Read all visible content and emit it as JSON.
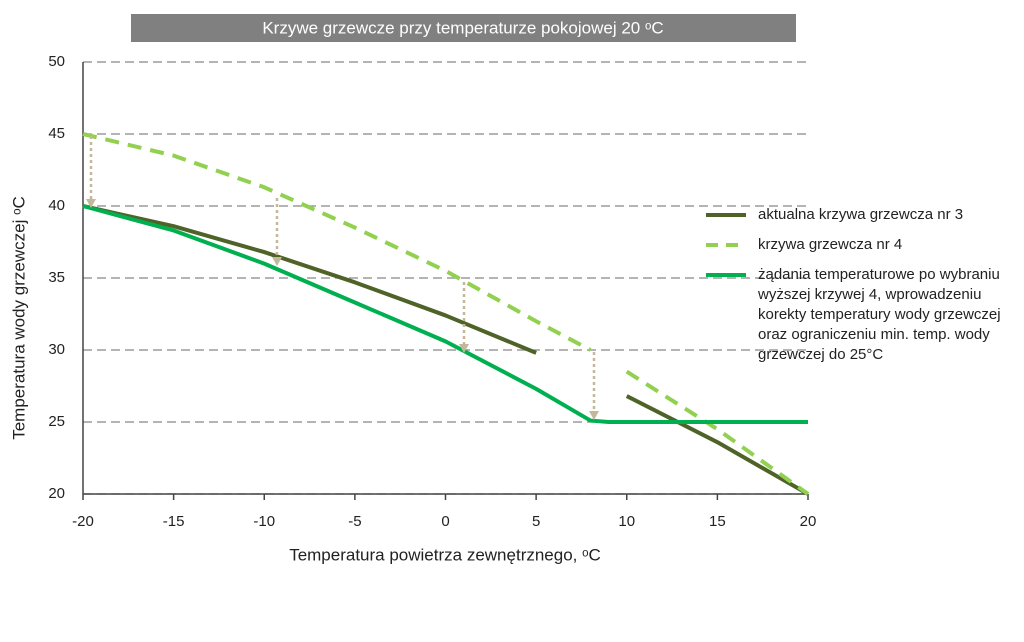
{
  "chart_data": {
    "type": "line",
    "title": "Krzywe grzewcze przy temperaturze pokojowej 20 ᵒC",
    "x_label": "Temperatura powietrza zewnętrznego, ᵒC",
    "y_label": "Temperatura wody grzewczej ᵒC",
    "x": [
      -20,
      -15,
      -10,
      -5,
      0,
      5,
      8,
      9,
      10,
      15,
      20
    ],
    "series": [
      {
        "name": "aktualna krzywa grzewcza nr 3",
        "color": "#4f6228",
        "dashed": false,
        "values": [
          40,
          38.6,
          36.8,
          34.7,
          32.4,
          29.8,
          null,
          null,
          26.8,
          23.6,
          20
        ]
      },
      {
        "name": "krzywa grzewcza nr 4",
        "color": "#92d050",
        "dashed": true,
        "values": [
          45,
          43.5,
          41.3,
          38.5,
          35.5,
          32,
          30,
          null,
          28.5,
          24.5,
          20
        ]
      },
      {
        "name": "żądania temperaturowe po wybraniu wyższej krzywej 4, wprowadzeniu korekty temperatury wody grzewczej oraz ograniczeniu min. temp. wody grzewczej do 25°C",
        "color": "#00b050",
        "dashed": false,
        "values": [
          40,
          38.3,
          36,
          33.3,
          30.6,
          27.3,
          25.1,
          25,
          25,
          25,
          25
        ]
      }
    ],
    "xlim": [
      -20,
      20
    ],
    "xticks": [
      -20,
      -15,
      -10,
      -5,
      0,
      5,
      10,
      15,
      20
    ],
    "ylim": [
      20,
      50
    ],
    "yticks": [
      20,
      25,
      30,
      35,
      40,
      45,
      50
    ],
    "grid": true,
    "legend": "right"
  }
}
